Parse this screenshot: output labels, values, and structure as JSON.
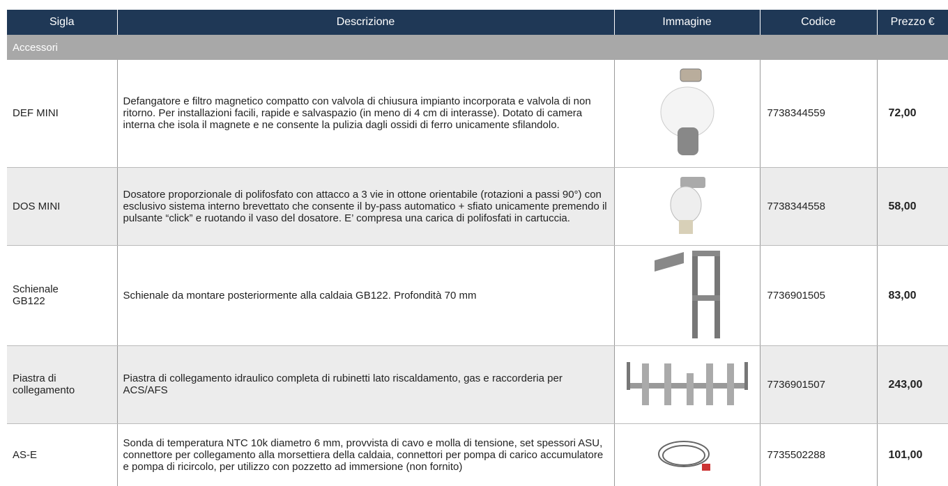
{
  "header": {
    "columns": [
      "Sigla",
      "Descrizione",
      "Immagine",
      "Codice",
      "Prezzo €"
    ]
  },
  "section": "Accessori",
  "rows": [
    {
      "sigla": "DEF MINI",
      "descrizione": "Defangatore e filtro magnetico compatto con valvola di chiusura impianto incorporata e valvola di non ritorno. Per installazioni facili, rapide e salvaspazio (in meno di 4 cm di interasse). Dotato di camera interna che isola il magnete e ne consente la pulizia dagli ossidi di ferro unicamente sfilandolo.",
      "codice": "7738344559",
      "prezzo": "72,00"
    },
    {
      "sigla": "DOS MINI",
      "descrizione": "Dosatore proporzionale di polifosfato con attacco a 3 vie in ottone orientabile (rotazioni a passi 90°) con esclusivo sistema interno brevettato che consente il by-pass automatico + sfiato unicamente premendo il pulsante “click” e ruotando il vaso del dosatore. E’ compresa una carica di polifosfati in cartuccia.",
      "codice": "7738344558",
      "prezzo": "58,00"
    },
    {
      "sigla": "Schienale GB122",
      "descrizione": "Schienale da montare posteriormente alla caldaia GB122. Profondità 70 mm",
      "codice": "7736901505",
      "prezzo": "83,00"
    },
    {
      "sigla": "Piastra di collegamento",
      "descrizione": "Piastra di collegamento idraulico completa di rubinetti lato riscaldamento, gas e raccorderia per ACS/AFS",
      "codice": "7736901507",
      "prezzo": "243,00"
    },
    {
      "sigla": "AS-E",
      "descrizione": "Sonda di temperatura NTC 10k diametro 6 mm, provvista di cavo e molla di tensione, set spessori ASU, connettore per collegamento alla morsettiera della caldaia, connettori per pompa di carico accumulatore e pompa di ricircolo, per utilizzo con pozzetto ad immersione (non fornito)",
      "codice": "7735502288",
      "prezzo": "101,00"
    }
  ]
}
